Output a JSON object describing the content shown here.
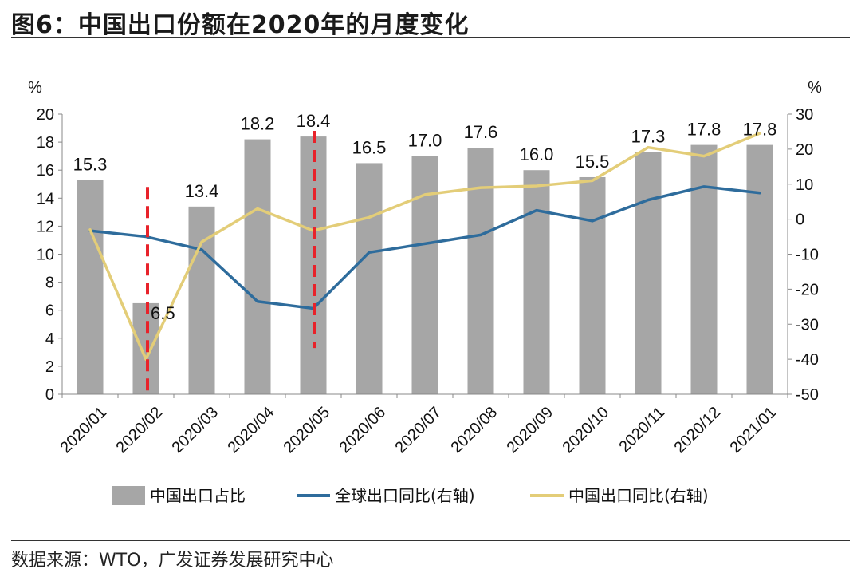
{
  "header": {
    "title": "图6：中国出口份额在2020年的月度变化"
  },
  "footer": {
    "source": "数据来源：WTO，广发证券发展研究中心"
  },
  "chart_data": {
    "type": "bar+line",
    "categories": [
      "2020/01",
      "2020/02",
      "2020/03",
      "2020/04",
      "2020/05",
      "2020/06",
      "2020/07",
      "2020/08",
      "2020/09",
      "2020/10",
      "2020/11",
      "2020/12",
      "2021/01"
    ],
    "left_axis": {
      "unit": "%",
      "ylim": [
        0,
        20
      ],
      "ticks": [
        0,
        2,
        4,
        6,
        8,
        10,
        12,
        14,
        16,
        18,
        20
      ]
    },
    "right_axis": {
      "unit": "%",
      "ylim": [
        -50,
        30
      ],
      "ticks": [
        -50,
        -40,
        -30,
        -20,
        -10,
        0,
        10,
        20,
        30
      ]
    },
    "series": [
      {
        "name": "中国出口占比",
        "type": "bar",
        "axis": "left",
        "color": "#a6a6a6",
        "values": [
          15.3,
          6.5,
          13.4,
          18.2,
          18.4,
          16.5,
          17.0,
          17.6,
          16.0,
          15.5,
          17.3,
          17.8,
          17.8
        ],
        "labels": [
          "15.3",
          "6.5",
          "13.4",
          "18.2",
          "18.4",
          "16.5",
          "17.0",
          "17.6",
          "16.0",
          "15.5",
          "17.3",
          "17.8",
          "17.8"
        ]
      },
      {
        "name": "全球出口同比(右轴)",
        "type": "line",
        "axis": "right",
        "color": "#2e6c9c",
        "values": [
          -3.3,
          -5.0,
          -8.7,
          -23.5,
          -25.5,
          -9.5,
          -7.0,
          -4.5,
          2.5,
          -0.5,
          5.5,
          9.3,
          7.5
        ]
      },
      {
        "name": "中国出口同比(右轴)",
        "type": "line",
        "axis": "right",
        "color": "#e3cd78",
        "values": [
          -3.0,
          -40.0,
          -6.5,
          3.0,
          -3.3,
          0.5,
          7.0,
          9.0,
          9.5,
          11.0,
          20.5,
          18.0,
          24.5
        ]
      }
    ],
    "markers": [
      {
        "type": "vertical-dashed",
        "color": "#e8222a",
        "category": "2020/02",
        "from": 0,
        "to": 14.8
      },
      {
        "type": "vertical-dashed",
        "color": "#e8222a",
        "category": "2020/05",
        "from": 3.3,
        "to": 18.8
      }
    ],
    "legend": "bottom"
  }
}
